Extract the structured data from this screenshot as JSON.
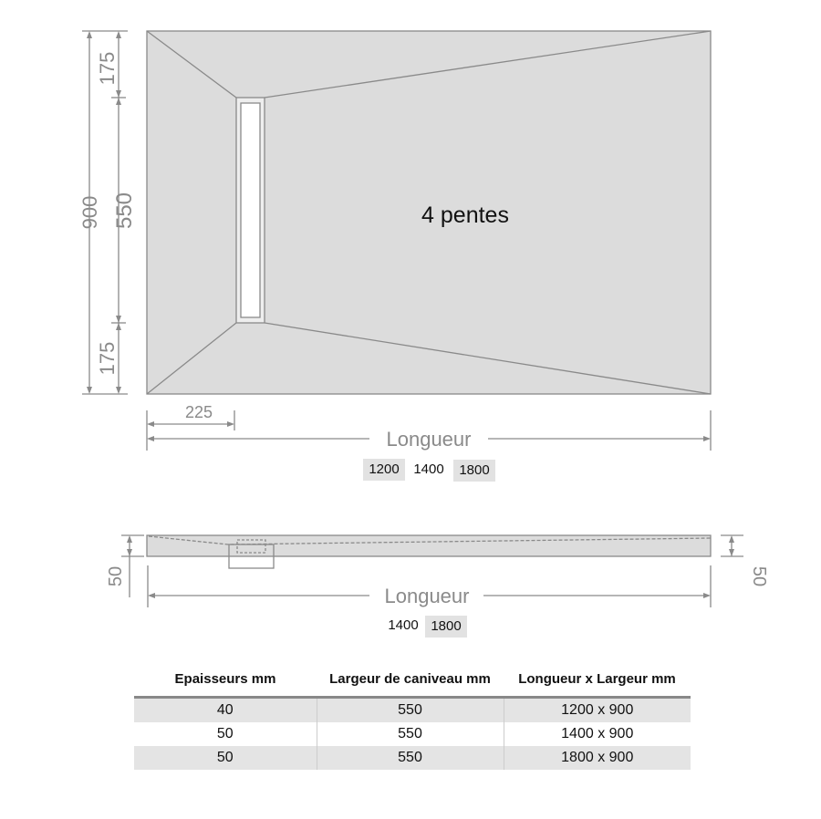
{
  "top_view": {
    "title": "4 pentes",
    "dim_total_width": "900",
    "dim_top": "175",
    "dim_channel": "550",
    "dim_bottom": "175",
    "dim_offset": "225",
    "length_label": "Longueur",
    "lengths": [
      {
        "value": "1200",
        "highlighted": true
      },
      {
        "value": "1400",
        "highlighted": false
      },
      {
        "value": "1800",
        "highlighted": true
      }
    ]
  },
  "side_view": {
    "dim_left": "50",
    "dim_right": "50",
    "length_label": "Longueur",
    "lengths": [
      {
        "value": "1400",
        "highlighted": false
      },
      {
        "value": "1800",
        "highlighted": true
      }
    ]
  },
  "table": {
    "headers": [
      "Epaisseurs mm",
      "Largeur de caniveau mm",
      "Longueur x Largeur mm"
    ],
    "rows": [
      [
        "40",
        "550",
        "1200 x 900"
      ],
      [
        "50",
        "550",
        "1400 x 900"
      ],
      [
        "50",
        "550",
        "1800 x 900"
      ]
    ]
  },
  "colors": {
    "tray_fill": "#dcdcdc",
    "line": "#8a8a8a",
    "row_shade": "#e4e4e4"
  }
}
